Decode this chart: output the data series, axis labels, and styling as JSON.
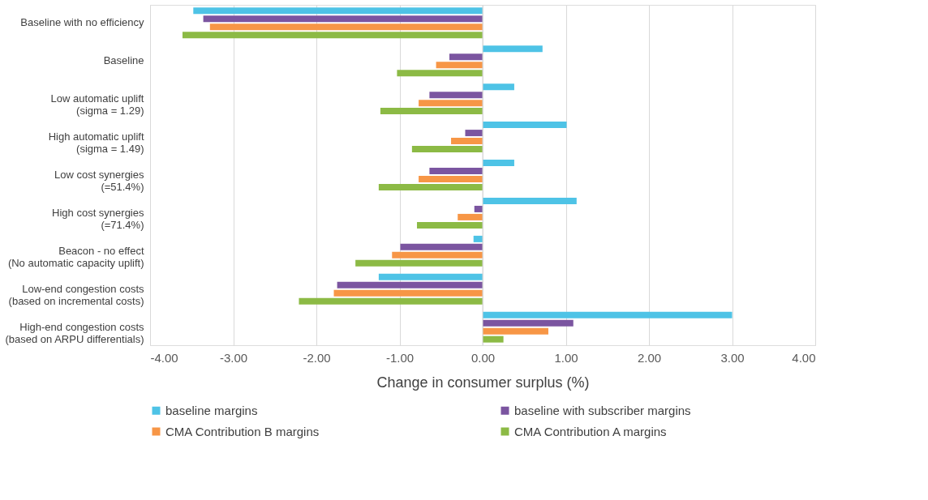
{
  "chart_data": {
    "type": "bar",
    "orientation": "horizontal",
    "xlabel": "Change in consumer surplus (%)",
    "categories": [
      "Baseline with no efficiency",
      "Baseline",
      "Low automatic uplift\n(sigma = 1.29)",
      "High automatic uplift\n(sigma = 1.49)",
      "Low cost synergies\n(=51.4%)",
      "High cost synergies\n(=71.4%)",
      "Beacon - no effect\n(No automatic capacity uplift)",
      "Low-end congestion costs\n(based on incremental costs)",
      "High-end congestion costs\n(based on ARPU differentials)"
    ],
    "series": [
      {
        "name": "baseline margins",
        "color": "#4ec3e6",
        "values": [
          -3.48,
          0.72,
          0.38,
          1.01,
          0.38,
          1.13,
          -0.11,
          -1.25,
          3.0
        ]
      },
      {
        "name": "baseline with subscriber margins",
        "color": "#7b55a0",
        "values": [
          -3.36,
          -0.4,
          -0.64,
          -0.21,
          -0.64,
          -0.1,
          -0.99,
          -1.75,
          1.09
        ]
      },
      {
        "name": "CMA Contribution B margins",
        "color": "#f79646",
        "values": [
          -3.28,
          -0.56,
          -0.77,
          -0.38,
          -0.77,
          -0.3,
          -1.09,
          -1.79,
          0.79
        ]
      },
      {
        "name": "CMA Contribution A margins",
        "color": "#8cba45",
        "values": [
          -3.61,
          -1.03,
          -1.23,
          -0.85,
          -1.25,
          -0.79,
          -1.53,
          -2.21,
          0.25
        ]
      }
    ],
    "xlim": [
      -4,
      4
    ],
    "xticks": [
      {
        "value": -4,
        "label": "-4.00"
      },
      {
        "value": -3,
        "label": "-3.00"
      },
      {
        "value": -2,
        "label": "-2.00"
      },
      {
        "value": -1,
        "label": "-1.00"
      },
      {
        "value": 0,
        "label": "0.00"
      },
      {
        "value": 1,
        "label": "1.00"
      },
      {
        "value": 2,
        "label": "2.00"
      },
      {
        "value": 3,
        "label": "3.00"
      },
      {
        "value": 4,
        "label": "4.00"
      }
    ],
    "grid": "x",
    "legend": "bottom"
  }
}
